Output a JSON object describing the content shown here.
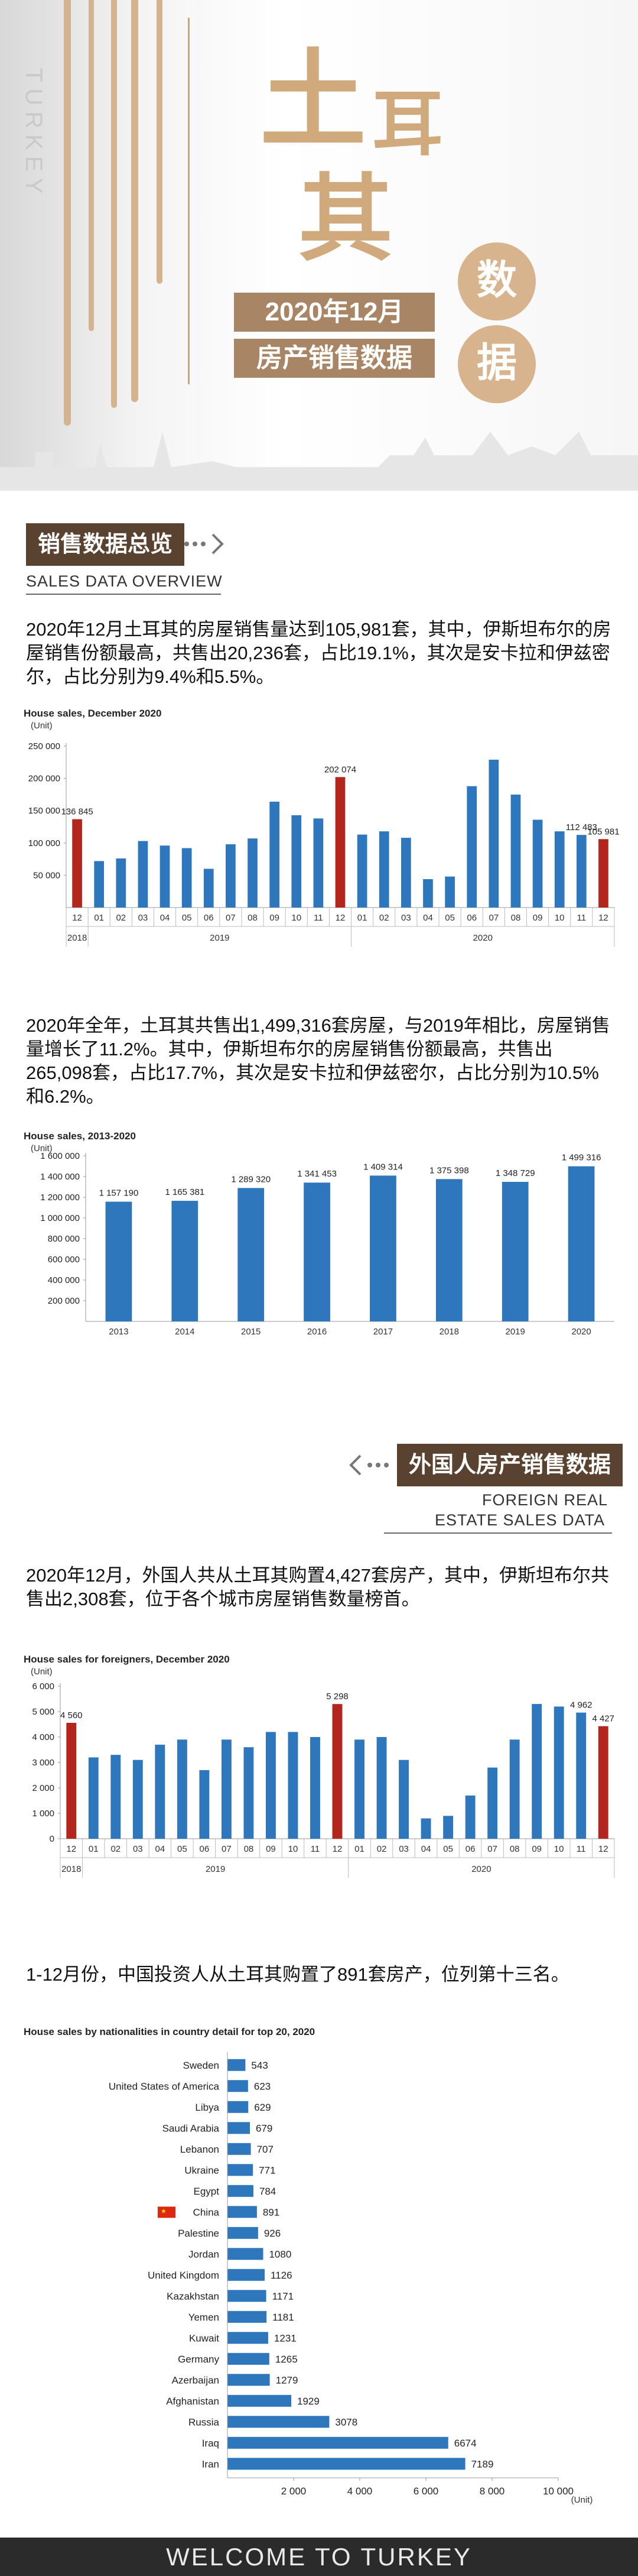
{
  "hero": {
    "vertical_text": "TURKEY",
    "big_chars": [
      "土",
      "耳",
      "其"
    ],
    "subtitle_1": "2020年12月",
    "subtitle_2": "房产销售数据",
    "circle_1": "数",
    "circle_2": "据"
  },
  "section1": {
    "title": "销售数据总览",
    "title_en": "SALES DATA OVERVIEW",
    "para1": "2020年12月土耳其的房屋销售量达到105,981套，其中，伊斯坦布尔的房屋销售份额最高，共售出20,236套，占比19.1%，其次是安卡拉和伊兹密尔，占比分别为9.4%和5.5%。",
    "para2": "2020年全年，土耳其共售出1,499,316套房屋，与2019年相比，房屋销售量增长了11.2%。其中，伊斯坦布尔的房屋销售份额最高，共售出265,098套，占比17.7%，其次是安卡拉和伊兹密尔，占比分别为10.5%和6.2%。"
  },
  "section2": {
    "title": "外国人房产销售数据",
    "title_en_1": "FOREIGN REAL",
    "title_en_2": "ESTATE SALES DATA",
    "para1": "2020年12月，外国人共从土耳其购置4,427套房产，其中，伊斯坦布尔共售出2,308套，位于各个城市房屋销售数量榜首。",
    "para2": "1-12月份，中国投资人从土耳其购置了891套房产，位列第十三名。"
  },
  "footer": {
    "text": "WELCOME TO TURKEY"
  },
  "colors": {
    "blue": "#2f77bd",
    "red": "#b3261e",
    "gold": "#d0a97c",
    "brown": "#5a4231"
  },
  "chart_data": [
    {
      "type": "bar",
      "title": "House sales, December 2020",
      "ylabel": "(Unit)",
      "ylim": [
        0,
        250000
      ],
      "yticks": [
        "250 000",
        "200 000",
        "150 000",
        "100 000",
        "50 000"
      ],
      "categories": [
        "12",
        "01",
        "02",
        "03",
        "04",
        "05",
        "06",
        "07",
        "08",
        "09",
        "10",
        "11",
        "12",
        "01",
        "02",
        "03",
        "04",
        "05",
        "06",
        "07",
        "08",
        "09",
        "10",
        "11",
        "12"
      ],
      "years": [
        {
          "label": "2018",
          "from": 0,
          "to": 0
        },
        {
          "label": "2019",
          "from": 1,
          "to": 12
        },
        {
          "label": "2020",
          "from": 13,
          "to": 24
        }
      ],
      "values": [
        136845,
        72000,
        76000,
        103000,
        96000,
        92000,
        60000,
        98000,
        107000,
        164000,
        143000,
        138000,
        202074,
        113000,
        118000,
        108000,
        44000,
        48000,
        188000,
        229000,
        175000,
        136000,
        118000,
        112483,
        105981
      ],
      "highlight": [
        0,
        12,
        24
      ],
      "data_labels": {
        "0": "136 845",
        "12": "202 074",
        "23": "112 483",
        "24": "105 981"
      }
    },
    {
      "type": "bar",
      "title": "House sales, 2013-2020",
      "ylabel": "(Unit)",
      "ylim": [
        0,
        1600000
      ],
      "yticks": [
        "1 600 000",
        "1 400 000",
        "1 200 000",
        "1 000 000",
        "800 000",
        "600 000",
        "400 000",
        "200 000"
      ],
      "categories": [
        "2013",
        "2014",
        "2015",
        "2016",
        "2017",
        "2018",
        "2019",
        "2020"
      ],
      "values": [
        1157190,
        1165381,
        1289320,
        1341453,
        1409314,
        1375398,
        1348729,
        1499316
      ],
      "data_labels_text": [
        "1 157 190",
        "1 165 381",
        "1 289 320",
        "1 341 453",
        "1 409 314",
        "1 375 398",
        "1 348 729",
        "1 499 316"
      ]
    },
    {
      "type": "bar",
      "title": "House sales for foreigners, December 2020",
      "ylabel": "(Unit)",
      "ylim": [
        0,
        6000
      ],
      "yticks": [
        "6 000",
        "5 000",
        "4 000",
        "3 000",
        "2 000",
        "1 000",
        "0"
      ],
      "categories": [
        "12",
        "01",
        "02",
        "03",
        "04",
        "05",
        "06",
        "07",
        "08",
        "09",
        "10",
        "11",
        "12",
        "01",
        "02",
        "03",
        "04",
        "05",
        "06",
        "07",
        "08",
        "09",
        "10",
        "11",
        "12"
      ],
      "years": [
        {
          "label": "2018",
          "from": 0,
          "to": 0
        },
        {
          "label": "2019",
          "from": 1,
          "to": 12
        },
        {
          "label": "2020",
          "from": 13,
          "to": 24
        }
      ],
      "values": [
        4560,
        3200,
        3300,
        3100,
        3700,
        3900,
        2700,
        3900,
        3600,
        4200,
        4200,
        4000,
        5298,
        3900,
        4000,
        3100,
        800,
        900,
        1700,
        2800,
        3900,
        5300,
        5200,
        4962,
        4427
      ],
      "highlight": [
        0,
        12,
        24
      ],
      "data_labels": {
        "0": "4 560",
        "12": "5 298",
        "23": "4 962",
        "24": "4 427"
      }
    },
    {
      "type": "bar",
      "orientation": "horizontal",
      "title": "House sales by nationalities in country detail for top 20, 2020",
      "xlabel": "(Unit)",
      "xlim": [
        0,
        10000
      ],
      "xticks": [
        "2 000",
        "4 000",
        "6 000",
        "8 000",
        "10 000"
      ],
      "categories": [
        "Sweden",
        "United States of America",
        "Libya",
        "Saudi Arabia",
        "Lebanon",
        "Ukraine",
        "Egypt",
        "China",
        "Palestine",
        "Jordan",
        "United Kingdom",
        "Kazakhstan",
        "Yemen",
        "Kuwait",
        "Germany",
        "Azerbaijan",
        "Afghanistan",
        "Russia",
        "Iraq",
        "Iran"
      ],
      "values": [
        543,
        623,
        629,
        679,
        707,
        771,
        784,
        891,
        926,
        1080,
        1126,
        1171,
        1181,
        1231,
        1265,
        1279,
        1929,
        3078,
        6674,
        7189
      ],
      "flag_row": "China"
    }
  ]
}
